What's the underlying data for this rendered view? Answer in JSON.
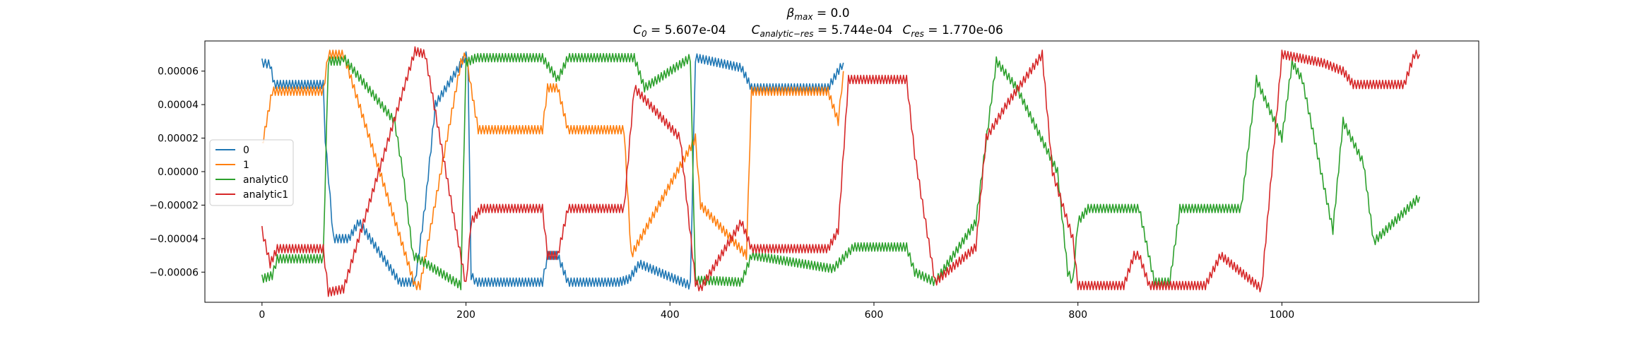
{
  "chart_data": {
    "type": "line",
    "title": {
      "line1_prefix": "β",
      "line1_sub": "max",
      "line1_value": " = 0.0",
      "line2": [
        {
          "sym": "C",
          "sub": "0",
          "value": " = 5.607e-04"
        },
        {
          "sym": "C",
          "sub": "analytic−res",
          "value": " = 5.744e-04"
        },
        {
          "sym": "C",
          "sub": "res",
          "value": " = 1.770e-06"
        }
      ]
    },
    "xlabel": "",
    "ylabel": "",
    "xlim": [
      -56,
      1193
    ],
    "ylim": [
      -7.8e-05,
      7.8e-05
    ],
    "xticks": [
      {
        "v": 0,
        "label": "0"
      },
      {
        "v": 200,
        "label": "200"
      },
      {
        "v": 400,
        "label": "400"
      },
      {
        "v": 600,
        "label": "600"
      },
      {
        "v": 800,
        "label": "800"
      },
      {
        "v": 1000,
        "label": "1000"
      }
    ],
    "yticks": [
      {
        "v": 6e-05,
        "label": "0.00006"
      },
      {
        "v": 4e-05,
        "label": "0.00004"
      },
      {
        "v": 2e-05,
        "label": "0.00002"
      },
      {
        "v": 0.0,
        "label": "0.00000"
      },
      {
        "v": -2e-05,
        "label": "−0.00002"
      },
      {
        "v": -4e-05,
        "label": "−0.00004"
      },
      {
        "v": -6e-05,
        "label": "−0.00006"
      }
    ],
    "grid": false,
    "legend_position": "center-left",
    "series": [
      {
        "name": "0",
        "color": "#1f77b4",
        "noise": 2.5e-06,
        "points": [
          [
            0,
            6.5e-05
          ],
          [
            8,
            6.4e-05
          ],
          [
            12,
            5.2e-05
          ],
          [
            60,
            5.2e-05
          ],
          [
            62,
            2e-05
          ],
          [
            70,
            -4e-05
          ],
          [
            85,
            -4e-05
          ],
          [
            95,
            -3e-05
          ],
          [
            135,
            -6.6e-05
          ],
          [
            150,
            -6.6e-05
          ],
          [
            160,
            -2e-05
          ],
          [
            170,
            4e-05
          ],
          [
            200,
            6.9e-05
          ],
          [
            202,
            6.5e-05
          ],
          [
            205,
            -6.2e-05
          ],
          [
            210,
            -6.6e-05
          ],
          [
            275,
            -6.6e-05
          ],
          [
            280,
            -5e-05
          ],
          [
            290,
            -5e-05
          ],
          [
            300,
            -6.6e-05
          ],
          [
            350,
            -6.6e-05
          ],
          [
            360,
            -6.4e-05
          ],
          [
            370,
            -5.5e-05
          ],
          [
            420,
            -6.8e-05
          ],
          [
            425,
            6.8e-05
          ],
          [
            470,
            6.2e-05
          ],
          [
            480,
            5e-05
          ],
          [
            555,
            5e-05
          ],
          [
            570,
            6.5e-05
          ]
        ]
      },
      {
        "name": "1",
        "color": "#ff7f0e",
        "noise": 2.5e-06,
        "points": [
          [
            0,
            1.5e-05
          ],
          [
            10,
            4.8e-05
          ],
          [
            60,
            4.8e-05
          ],
          [
            65,
            7e-05
          ],
          [
            80,
            7e-05
          ],
          [
            150,
            -6.8e-05
          ],
          [
            155,
            -6.8e-05
          ],
          [
            195,
            6.5e-05
          ],
          [
            200,
            7e-05
          ],
          [
            205,
            5e-05
          ],
          [
            212,
            2.5e-05
          ],
          [
            275,
            2.5e-05
          ],
          [
            280,
            5e-05
          ],
          [
            290,
            5e-05
          ],
          [
            300,
            2.5e-05
          ],
          [
            355,
            2.5e-05
          ],
          [
            362,
            -5e-05
          ],
          [
            425,
            2e-05
          ],
          [
            430,
            -2e-05
          ],
          [
            475,
            -5e-05
          ],
          [
            480,
            4.8e-05
          ],
          [
            555,
            4.8e-05
          ],
          [
            565,
            3e-05
          ],
          [
            570,
            6e-05
          ]
        ]
      },
      {
        "name": "analytic0",
        "color": "#2ca02c",
        "noise": 2.5e-06,
        "points": [
          [
            0,
            -6.4e-05
          ],
          [
            10,
            -6.2e-05
          ],
          [
            15,
            -5.2e-05
          ],
          [
            60,
            -5.2e-05
          ],
          [
            65,
            6.6e-05
          ],
          [
            78,
            6.6e-05
          ],
          [
            80,
            6.8e-05
          ],
          [
            130,
            3e-05
          ],
          [
            138,
            0.0
          ],
          [
            148,
            -5e-05
          ],
          [
            195,
            -6.8e-05
          ],
          [
            200,
            6.5e-05
          ],
          [
            210,
            6.8e-05
          ],
          [
            275,
            6.8e-05
          ],
          [
            290,
            5.5e-05
          ],
          [
            300,
            6.8e-05
          ],
          [
            365,
            6.8e-05
          ],
          [
            375,
            5e-05
          ],
          [
            420,
            6.8e-05
          ],
          [
            425,
            -6.5e-05
          ],
          [
            440,
            -6.5e-05
          ],
          [
            470,
            -6.6e-05
          ],
          [
            480,
            -5e-05
          ],
          [
            560,
            -5.8e-05
          ],
          [
            580,
            -4.5e-05
          ],
          [
            632,
            -4.5e-05
          ],
          [
            640,
            -6e-05
          ],
          [
            660,
            -6.6e-05
          ],
          [
            700,
            -3e-05
          ],
          [
            720,
            6.6e-05
          ],
          [
            740,
            5e-05
          ],
          [
            780,
            0.0
          ],
          [
            790,
            -6e-05
          ],
          [
            795,
            -6.6e-05
          ],
          [
            800,
            -3e-05
          ],
          [
            810,
            -2.2e-05
          ],
          [
            860,
            -2.2e-05
          ],
          [
            875,
            -6.6e-05
          ],
          [
            890,
            -6.6e-05
          ],
          [
            900,
            -2.2e-05
          ],
          [
            960,
            -2.2e-05
          ],
          [
            975,
            5.5e-05
          ],
          [
            1000,
            2e-05
          ],
          [
            1010,
            6.5e-05
          ],
          [
            1020,
            5.5e-05
          ],
          [
            1050,
            -3.5e-05
          ],
          [
            1060,
            3e-05
          ],
          [
            1080,
            5e-06
          ],
          [
            1090,
            -4.2e-05
          ],
          [
            1135,
            -1.5e-05
          ]
        ]
      },
      {
        "name": "analytic1",
        "color": "#d62728",
        "noise": 2.5e-06,
        "points": [
          [
            0,
            -3.5e-05
          ],
          [
            8,
            -5.5e-05
          ],
          [
            15,
            -4.6e-05
          ],
          [
            60,
            -4.6e-05
          ],
          [
            65,
            -7.2e-05
          ],
          [
            80,
            -7e-05
          ],
          [
            150,
            7.2e-05
          ],
          [
            160,
            7e-05
          ],
          [
            200,
            -6.8e-05
          ],
          [
            205,
            -3e-05
          ],
          [
            215,
            -2.2e-05
          ],
          [
            275,
            -2.2e-05
          ],
          [
            280,
            -5e-05
          ],
          [
            290,
            -5e-05
          ],
          [
            300,
            -2.2e-05
          ],
          [
            355,
            -2.2e-05
          ],
          [
            365,
            5e-05
          ],
          [
            410,
            2e-05
          ],
          [
            425,
            -6.6e-05
          ],
          [
            430,
            -7e-05
          ],
          [
            470,
            -3e-05
          ],
          [
            480,
            -4.6e-05
          ],
          [
            555,
            -4.6e-05
          ],
          [
            565,
            -3.5e-05
          ],
          [
            575,
            5.5e-05
          ],
          [
            632,
            5.5e-05
          ],
          [
            640,
            1e-05
          ],
          [
            660,
            -6.6e-05
          ],
          [
            700,
            -4.5e-05
          ],
          [
            710,
            2e-05
          ],
          [
            730,
            4e-05
          ],
          [
            765,
            7e-05
          ],
          [
            775,
            0.0
          ],
          [
            795,
            -4e-05
          ],
          [
            800,
            -6.8e-05
          ],
          [
            845,
            -6.8e-05
          ],
          [
            855,
            -5e-05
          ],
          [
            860,
            -5e-05
          ],
          [
            870,
            -6.8e-05
          ],
          [
            925,
            -6.8e-05
          ],
          [
            940,
            -5e-05
          ],
          [
            980,
            -7e-05
          ],
          [
            990,
            0.0
          ],
          [
            1000,
            7e-05
          ],
          [
            1040,
            6.5e-05
          ],
          [
            1060,
            6e-05
          ],
          [
            1070,
            5.2e-05
          ],
          [
            1120,
            5.2e-05
          ],
          [
            1130,
            7e-05
          ],
          [
            1135,
            7e-05
          ]
        ]
      }
    ]
  }
}
